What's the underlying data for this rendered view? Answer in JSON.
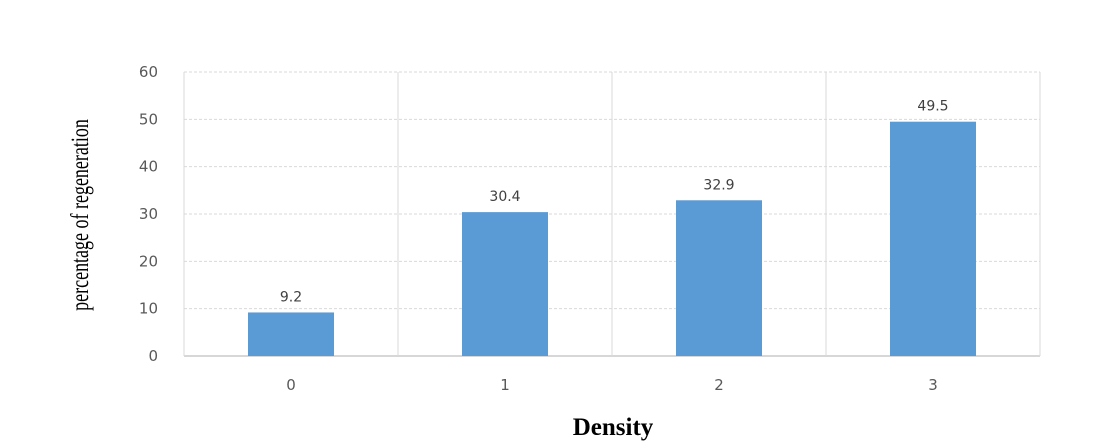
{
  "chart_data": {
    "type": "bar",
    "title": "",
    "xlabel": "Density",
    "ylabel": "percentage of regeneration",
    "categories": [
      "0",
      "1",
      "2",
      "3"
    ],
    "values": [
      9.2,
      30.4,
      32.9,
      49.5
    ],
    "data_labels": [
      "9.2",
      "30.4",
      "32.9",
      "49.5"
    ],
    "ylim": [
      0,
      60
    ],
    "yticks": [
      0,
      10,
      20,
      30,
      40,
      50,
      60
    ],
    "ytick_labels": [
      "0",
      "10",
      "20",
      "30",
      "40",
      "50",
      "60"
    ],
    "grid": true,
    "legend": "none",
    "colors": {
      "bar": "#5B9BD5",
      "grid": "#D9D9D9",
      "axis_text": "#595959"
    }
  }
}
